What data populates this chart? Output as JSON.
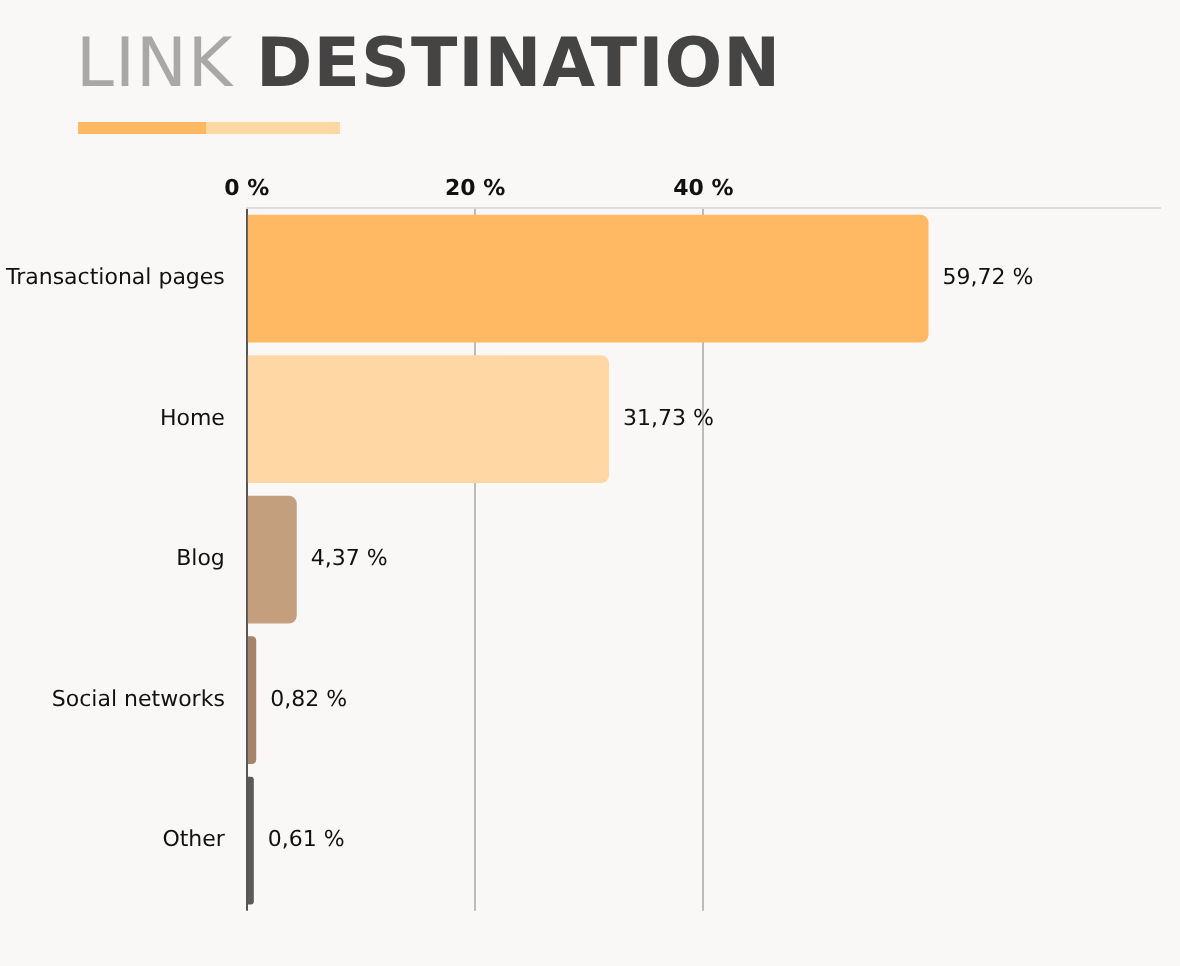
{
  "chart_data": {
    "type": "bar",
    "orientation": "horizontal",
    "title": "LINK DESTINATION",
    "categories": [
      "Transactional pages",
      "Home",
      "Blog",
      "Social networks",
      "Other"
    ],
    "values": [
      59.72,
      31.73,
      4.37,
      0.82,
      0.61
    ],
    "colors": [
      "#ffb963",
      "#ffd7a5",
      "#c39f7e",
      "#a4846a",
      "#5a5a5a"
    ],
    "value_labels": [
      "59,72 %",
      "31,73 %",
      "4,37 %",
      "0,82 %",
      "0,61 %"
    ],
    "xlim": [
      0,
      80
    ],
    "xticks": [
      {
        "value": 0,
        "label": "0 %"
      },
      {
        "value": 20,
        "label": "20 %"
      },
      {
        "value": 40,
        "label": "40 %"
      }
    ],
    "grid": "x",
    "legend": false
  }
}
